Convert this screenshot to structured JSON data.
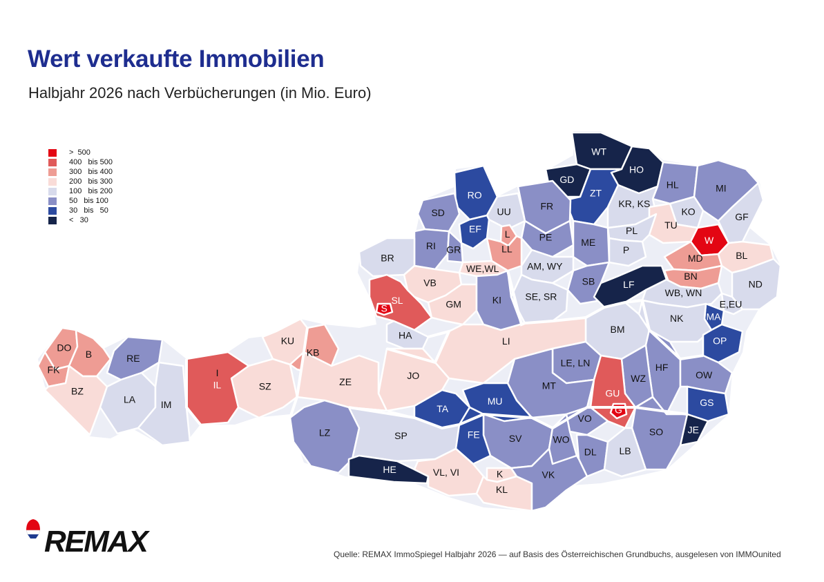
{
  "title": "Wert verkaufte Immobilien",
  "subtitle": "Halbjahr 2026 nach Verbücherungen (in Mio. Euro)",
  "legend": [
    {
      "label": ">  500",
      "color": "#e30613"
    },
    {
      "label": "400   bis 500",
      "color": "#e05a5a"
    },
    {
      "label": "300   bis 400",
      "color": "#ee9c94"
    },
    {
      "label": "200   bis 300",
      "color": "#f9dcd8"
    },
    {
      "label": "100   bis 200",
      "color": "#d8dbec"
    },
    {
      "label": "50   bis 100",
      "color": "#8a8fc6"
    },
    {
      "label": "30   bis   50",
      "color": "#2c4aa0"
    },
    {
      "label": "<   30",
      "color": "#16244a"
    }
  ],
  "regions": [
    {
      "code": "WT",
      "cls": 7
    },
    {
      "code": "HO",
      "cls": 7
    },
    {
      "code": "GD",
      "cls": 7
    },
    {
      "code": "ZT",
      "cls": 6
    },
    {
      "code": "HL",
      "cls": 5
    },
    {
      "code": "MI",
      "cls": 5
    },
    {
      "code": "RO",
      "cls": 6
    },
    {
      "code": "SD",
      "cls": 5
    },
    {
      "code": "UU",
      "cls": 4
    },
    {
      "code": "FR",
      "cls": 5
    },
    {
      "code": "KR, KS",
      "cls": 4
    },
    {
      "code": "KO",
      "cls": 4
    },
    {
      "code": "GF",
      "cls": 4
    },
    {
      "code": "EF",
      "cls": 6
    },
    {
      "code": "L",
      "cls": 2
    },
    {
      "code": "PE",
      "cls": 5
    },
    {
      "code": "TU",
      "cls": 3
    },
    {
      "code": "RI",
      "cls": 5
    },
    {
      "code": "GR",
      "cls": 5
    },
    {
      "code": "LL",
      "cls": 2
    },
    {
      "code": "ME",
      "cls": 5
    },
    {
      "code": "PL",
      "cls": 4
    },
    {
      "code": "P",
      "cls": 4
    },
    {
      "code": "W",
      "cls": 0
    },
    {
      "code": "BR",
      "cls": 4
    },
    {
      "code": "WE,WL",
      "cls": 3
    },
    {
      "code": "AM, WY",
      "cls": 4
    },
    {
      "code": "MD",
      "cls": 2
    },
    {
      "code": "BL",
      "cls": 3
    },
    {
      "code": "SL",
      "cls": 1
    },
    {
      "code": "VB",
      "cls": 3
    },
    {
      "code": "SB",
      "cls": 5
    },
    {
      "code": "BN",
      "cls": 2
    },
    {
      "code": "ND",
      "cls": 4
    },
    {
      "code": "S",
      "cls": 0
    },
    {
      "code": "GM",
      "cls": 3
    },
    {
      "code": "KI",
      "cls": 5
    },
    {
      "code": "SE, SR",
      "cls": 4
    },
    {
      "code": "LF",
      "cls": 7
    },
    {
      "code": "WB, WN",
      "cls": 4
    },
    {
      "code": "E,EU",
      "cls": 4
    },
    {
      "code": "MA",
      "cls": 6
    },
    {
      "code": "NK",
      "cls": 4
    },
    {
      "code": "HA",
      "cls": 4
    },
    {
      "code": "BM",
      "cls": 4
    },
    {
      "code": "KU",
      "cls": 3
    },
    {
      "code": "OP",
      "cls": 6
    },
    {
      "code": "DO",
      "cls": 2
    },
    {
      "code": "B",
      "cls": 2
    },
    {
      "code": "RE",
      "cls": 5
    },
    {
      "code": "KB",
      "cls": 2
    },
    {
      "code": "LI",
      "cls": 3
    },
    {
      "code": "LE, LN",
      "cls": 5
    },
    {
      "code": "HF",
      "cls": 5
    },
    {
      "code": "FK",
      "cls": 2
    },
    {
      "code": "I",
      "cls": 2
    },
    {
      "code": "JO",
      "cls": 3
    },
    {
      "code": "OW",
      "cls": 5
    },
    {
      "code": "ZE",
      "cls": 3
    },
    {
      "code": "WZ",
      "cls": 5
    },
    {
      "code": "BZ",
      "cls": 3
    },
    {
      "code": "SZ",
      "cls": 3
    },
    {
      "code": "MT",
      "cls": 5
    },
    {
      "code": "GU",
      "cls": 1
    },
    {
      "code": "IL",
      "cls": 1
    },
    {
      "code": "LA",
      "cls": 4
    },
    {
      "code": "IM",
      "cls": 4
    },
    {
      "code": "TA",
      "cls": 6
    },
    {
      "code": "MU",
      "cls": 6
    },
    {
      "code": "GS",
      "cls": 6
    },
    {
      "code": "G",
      "cls": 0
    },
    {
      "code": "VO",
      "cls": 5
    },
    {
      "code": "JE",
      "cls": 7
    },
    {
      "code": "LZ",
      "cls": 5
    },
    {
      "code": "SP",
      "cls": 4
    },
    {
      "code": "SV",
      "cls": 5
    },
    {
      "code": "WO",
      "cls": 5
    },
    {
      "code": "DL",
      "cls": 5
    },
    {
      "code": "SO",
      "cls": 5
    },
    {
      "code": "FE",
      "cls": 6
    },
    {
      "code": "LB",
      "cls": 4
    },
    {
      "code": "HE",
      "cls": 7
    },
    {
      "code": "VL, VI",
      "cls": 3
    },
    {
      "code": "K",
      "cls": 3
    },
    {
      "code": "KL",
      "cls": 3
    },
    {
      "code": "VK",
      "cls": 5
    }
  ],
  "logo_text": "REMAX",
  "source": "Quelle: REMAX ImmoSpiegel Halbjahr 2026 — auf Basis des Österreichischen Grundbuchs, ausgelesen von IMMOunited"
}
